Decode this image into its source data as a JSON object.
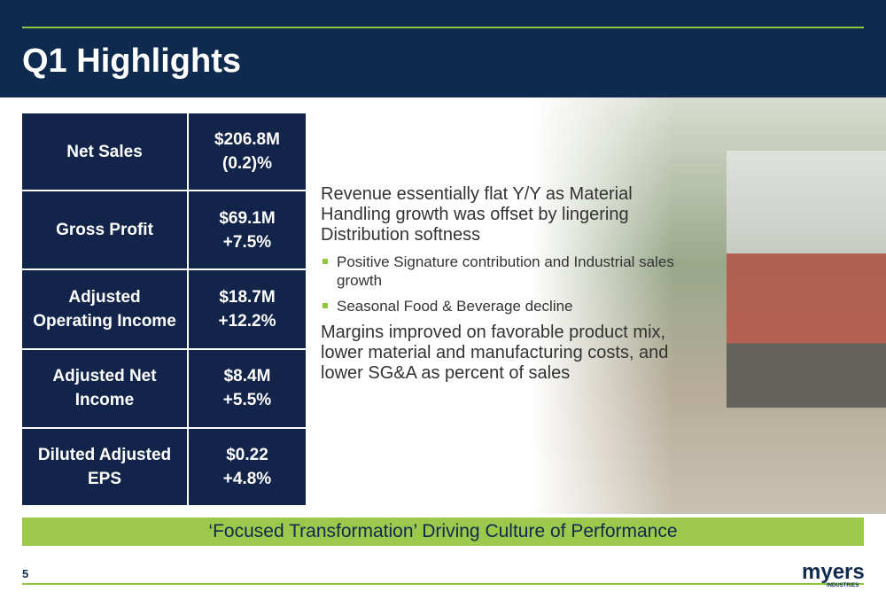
{
  "header": {
    "title": "Q1 Highlights"
  },
  "table": {
    "rows": [
      [
        "Net Sales",
        "$206.8M",
        "(0.2)%"
      ],
      [
        "Gross Profit",
        "$69.1M",
        "+7.5%"
      ],
      [
        "Adjusted Operating Income",
        "$18.7M",
        "+12.2%"
      ],
      [
        "Adjusted Net Income",
        "$8.4M",
        "+5.5%"
      ],
      [
        "Diluted Adjusted EPS",
        "$0.22",
        "+4.8%"
      ]
    ]
  },
  "body": {
    "paragraph1": "Revenue essentially flat Y/Y as Material Handling growth was offset by lingering Distribution softness",
    "bullets": [
      "Positive Signature contribution and Industrial sales growth",
      "Seasonal Food & Beverage decline"
    ],
    "paragraph2": "Margins improved on favorable product mix, lower material and manufacturing costs, and lower SG&A as percent of sales"
  },
  "banner": "‘Focused Transformation’ Driving Culture of Performance",
  "footer": {
    "page": "5",
    "logo": "myers",
    "logo_sub": "INDUSTRIES"
  }
}
